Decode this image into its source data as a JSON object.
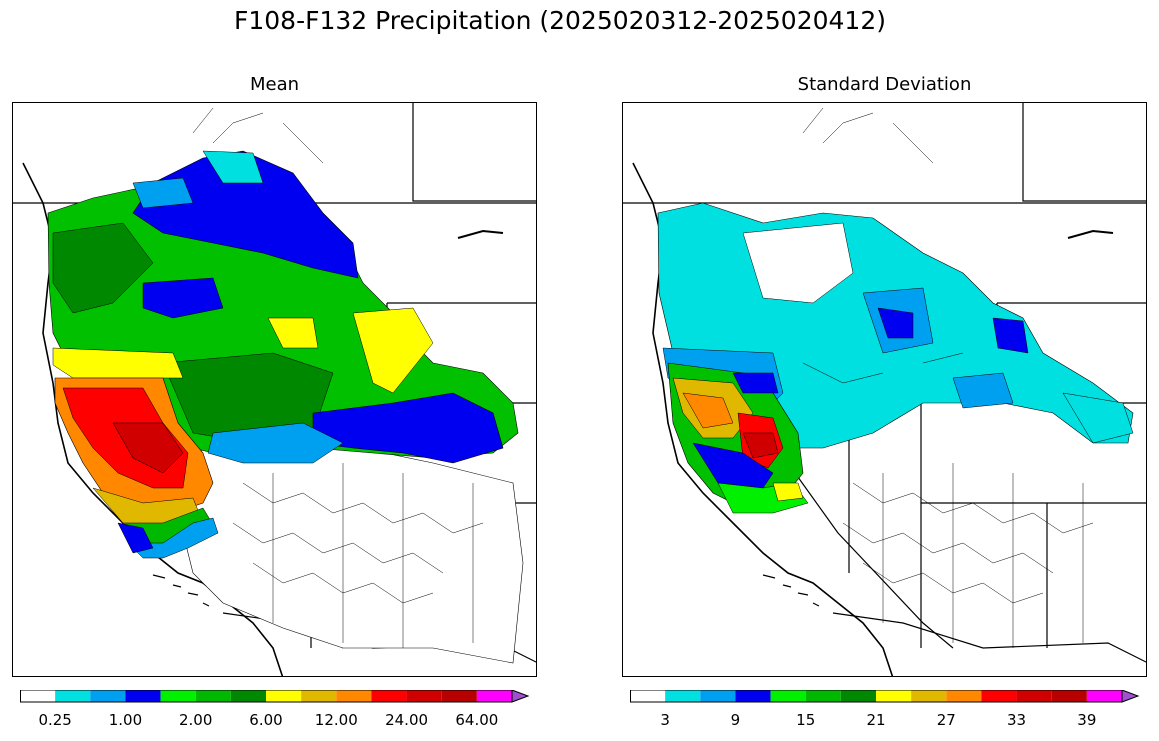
{
  "figure": {
    "title": "F108-F132 Precipitation (2025020312-2025020412)"
  },
  "panels": [
    {
      "title": "Mean",
      "colorbar": {
        "colors": [
          "#ffffff",
          "#00e0e0",
          "#00a0f0",
          "#0000f0",
          "#00f000",
          "#00b800",
          "#008800",
          "#ffff00",
          "#e0b800",
          "#ff8800",
          "#ff0000",
          "#d00000",
          "#b80000",
          "#ff00ff",
          "#a050d0"
        ],
        "tick_labels": [
          "0.25",
          "1.00",
          "2.00",
          "6.00",
          "12.00",
          "24.00",
          "64.00"
        ],
        "extend": "max"
      }
    },
    {
      "title": "Standard Deviation",
      "colorbar": {
        "colors": [
          "#ffffff",
          "#00e0e0",
          "#00a0f0",
          "#0000f0",
          "#00f000",
          "#00b800",
          "#008800",
          "#ffff00",
          "#e0b800",
          "#ff8800",
          "#ff0000",
          "#d00000",
          "#b80000",
          "#ff00ff",
          "#a050d0"
        ],
        "tick_labels": [
          "3",
          "9",
          "15",
          "21",
          "27",
          "33",
          "39"
        ],
        "extend": "max"
      }
    }
  ]
}
